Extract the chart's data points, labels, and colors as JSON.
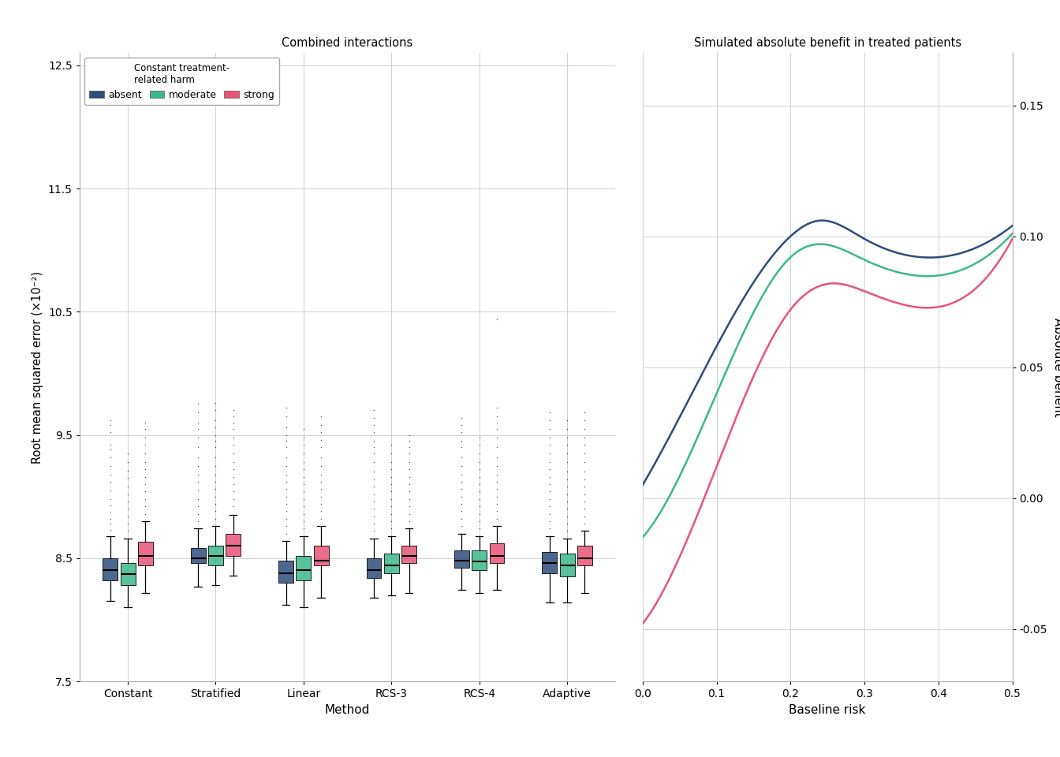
{
  "title_left": "Combined interactions",
  "title_right": "Simulated absolute benefit in treated patients",
  "ylabel_left": "Root mean squared error (×10⁻²)",
  "xlabel_left": "Method",
  "xlabel_right": "Baseline risk",
  "ylabel_right": "Absolute benefit",
  "methods": [
    "Constant",
    "Stratified",
    "Linear",
    "RCS-3",
    "RCS-4",
    "Adaptive"
  ],
  "harm_levels": [
    "absent",
    "moderate",
    "strong"
  ],
  "colors": {
    "absent": "#2E4D7B",
    "moderate": "#3DB88B",
    "strong": "#E8537A"
  },
  "legend_title": "Constant treatment-\nrelated harm",
  "ylim_left": [
    7.5,
    12.6
  ],
  "yticks_left": [
    7.5,
    8.5,
    9.5,
    10.5,
    11.5,
    12.5
  ],
  "box_data": {
    "Constant": {
      "absent": {
        "q1": 8.32,
        "median": 8.4,
        "q3": 8.5,
        "whislo": 8.15,
        "whishi": 8.68,
        "fliers_above": [
          8.73,
          8.78,
          8.82,
          8.87,
          8.93,
          8.98,
          9.05,
          9.12,
          9.18,
          9.25,
          9.32,
          9.38,
          9.42,
          9.52,
          9.58,
          9.62
        ]
      },
      "moderate": {
        "q1": 8.28,
        "median": 8.37,
        "q3": 8.46,
        "whislo": 8.1,
        "whishi": 8.66,
        "fliers_above": [
          8.72,
          8.78,
          8.84,
          8.9,
          8.96,
          9.02,
          9.08,
          9.15,
          9.21,
          9.28,
          9.35
        ]
      },
      "strong": {
        "q1": 8.44,
        "median": 8.52,
        "q3": 8.63,
        "whislo": 8.22,
        "whishi": 8.8,
        "fliers_above": [
          8.86,
          8.92,
          8.98,
          9.04,
          9.1,
          9.16,
          9.22,
          9.28,
          9.35,
          9.42,
          9.48,
          9.55,
          9.6
        ]
      }
    },
    "Stratified": {
      "absent": {
        "q1": 8.46,
        "median": 8.5,
        "q3": 8.58,
        "whislo": 8.27,
        "whishi": 8.74,
        "fliers_above": [
          8.8,
          8.86,
          8.92,
          8.98,
          9.05,
          9.12,
          9.18,
          9.25,
          9.32,
          9.4,
          9.48,
          9.55,
          9.6,
          9.68,
          9.75
        ]
      },
      "moderate": {
        "q1": 8.44,
        "median": 8.52,
        "q3": 8.6,
        "whislo": 8.28,
        "whishi": 8.76,
        "fliers_above": [
          8.82,
          8.88,
          8.94,
          9.0,
          9.06,
          9.12,
          9.18,
          9.25,
          9.32,
          9.4,
          9.45,
          9.5,
          9.56,
          9.62,
          9.7,
          9.76
        ]
      },
      "strong": {
        "q1": 8.52,
        "median": 8.6,
        "q3": 8.7,
        "whislo": 8.36,
        "whishi": 8.85,
        "fliers_above": [
          8.92,
          8.98,
          9.04,
          9.1,
          9.16,
          9.22,
          9.28,
          9.35,
          9.42,
          9.48,
          9.55,
          9.6,
          9.65,
          9.7
        ]
      }
    },
    "Linear": {
      "absent": {
        "q1": 8.3,
        "median": 8.38,
        "q3": 8.48,
        "whislo": 8.12,
        "whishi": 8.64,
        "fliers_above": [
          8.7,
          8.76,
          8.82,
          8.88,
          8.94,
          9.0,
          9.06,
          9.12,
          9.18,
          9.25,
          9.32,
          9.4,
          9.45,
          9.5,
          9.56,
          9.65,
          9.72
        ]
      },
      "moderate": {
        "q1": 8.32,
        "median": 8.4,
        "q3": 8.52,
        "whislo": 8.1,
        "whishi": 8.68,
        "fliers_above": [
          8.74,
          8.8,
          8.86,
          8.92,
          8.98,
          9.04,
          9.1,
          9.16,
          9.22,
          9.28,
          9.35,
          9.42,
          9.48,
          9.55
        ]
      },
      "strong": {
        "q1": 8.44,
        "median": 8.48,
        "q3": 8.6,
        "whislo": 8.18,
        "whishi": 8.76,
        "fliers_above": [
          8.82,
          8.88,
          8.94,
          9.0,
          9.06,
          9.12,
          9.18,
          9.25,
          9.32,
          9.4,
          9.46,
          9.52,
          9.58,
          9.65
        ]
      }
    },
    "RCS-3": {
      "absent": {
        "q1": 8.34,
        "median": 8.4,
        "q3": 8.5,
        "whislo": 8.18,
        "whishi": 8.66,
        "fliers_above": [
          8.72,
          8.78,
          8.84,
          8.9,
          8.96,
          9.02,
          9.08,
          9.14,
          9.2,
          9.28,
          9.35,
          9.4,
          9.45,
          9.52,
          9.58,
          9.64,
          9.7
        ]
      },
      "moderate": {
        "q1": 8.38,
        "median": 8.44,
        "q3": 8.54,
        "whislo": 8.2,
        "whishi": 8.68,
        "fliers_above": [
          8.74,
          8.8,
          8.86,
          8.92,
          8.98,
          9.04,
          9.1,
          9.16,
          9.22,
          9.28,
          9.35,
          9.42
        ]
      },
      "strong": {
        "q1": 8.46,
        "median": 8.52,
        "q3": 8.6,
        "whislo": 8.22,
        "whishi": 8.74,
        "fliers_above": [
          8.8,
          8.86,
          8.92,
          8.98,
          9.04,
          9.1,
          9.16,
          9.22,
          9.28,
          9.35,
          9.4,
          9.45,
          9.5
        ]
      }
    },
    "RCS-4": {
      "absent": {
        "q1": 8.42,
        "median": 8.48,
        "q3": 8.56,
        "whislo": 8.24,
        "whishi": 8.7,
        "fliers_above": [
          8.76,
          8.82,
          8.88,
          8.94,
          9.0,
          9.06,
          9.12,
          9.18,
          9.25,
          9.32,
          9.4,
          9.45,
          9.52,
          9.58,
          9.64
        ]
      },
      "moderate": {
        "q1": 8.4,
        "median": 8.47,
        "q3": 8.56,
        "whislo": 8.22,
        "whishi": 8.68,
        "fliers_above": [
          8.74,
          8.8,
          8.86,
          8.92,
          8.98,
          9.04,
          9.1,
          9.16,
          9.22,
          9.28,
          9.35,
          9.42,
          9.48
        ]
      },
      "strong": {
        "q1": 8.46,
        "median": 8.52,
        "q3": 8.62,
        "whislo": 8.24,
        "whishi": 8.76,
        "fliers_above": [
          8.82,
          8.88,
          8.94,
          9.0,
          9.06,
          9.12,
          9.18,
          9.25,
          9.32,
          9.4,
          9.48,
          9.55,
          9.6,
          9.65,
          9.72,
          10.44
        ]
      }
    },
    "Adaptive": {
      "absent": {
        "q1": 8.38,
        "median": 8.46,
        "q3": 8.55,
        "whislo": 8.14,
        "whishi": 8.68,
        "fliers_above": [
          8.74,
          8.8,
          8.86,
          8.92,
          8.98,
          9.04,
          9.1,
          9.16,
          9.22,
          9.28,
          9.35,
          9.42,
          9.48,
          9.55,
          9.62,
          9.68
        ]
      },
      "moderate": {
        "q1": 8.35,
        "median": 8.44,
        "q3": 8.54,
        "whislo": 8.14,
        "whishi": 8.66,
        "fliers_above": [
          8.72,
          8.78,
          8.84,
          8.9,
          8.96,
          9.02,
          9.08,
          9.14,
          9.2,
          9.28,
          9.35,
          9.42,
          9.48,
          9.55,
          9.62
        ]
      },
      "strong": {
        "q1": 8.44,
        "median": 8.5,
        "q3": 8.6,
        "whislo": 8.22,
        "whishi": 8.72,
        "fliers_above": [
          8.78,
          8.84,
          8.9,
          8.96,
          9.02,
          9.08,
          9.14,
          9.2,
          9.28,
          9.35,
          9.42,
          9.48,
          9.55,
          9.62,
          9.68
        ]
      }
    }
  },
  "line_knots_absent": [
    [
      0.0,
      0.005
    ],
    [
      0.1,
      0.058
    ],
    [
      0.2,
      0.1
    ],
    [
      0.24,
      0.106
    ],
    [
      0.3,
      0.099
    ],
    [
      0.4,
      0.092
    ],
    [
      0.5,
      0.104
    ]
  ],
  "line_knots_moderate": [
    [
      0.0,
      -0.015
    ],
    [
      0.1,
      0.04
    ],
    [
      0.2,
      0.092
    ],
    [
      0.24,
      0.097
    ],
    [
      0.3,
      0.091
    ],
    [
      0.4,
      0.085
    ],
    [
      0.5,
      0.101
    ]
  ],
  "line_knots_strong": [
    [
      0.0,
      -0.048
    ],
    [
      0.1,
      0.012
    ],
    [
      0.2,
      0.072
    ],
    [
      0.26,
      0.082
    ],
    [
      0.3,
      0.079
    ],
    [
      0.4,
      0.073
    ],
    [
      0.5,
      0.099
    ]
  ],
  "xlim_right": [
    0.0,
    0.5
  ],
  "ylim_right": [
    -0.07,
    0.17
  ],
  "yticks_right": [
    -0.05,
    0.0,
    0.05,
    0.1,
    0.15
  ],
  "background_color": "#FFFFFF",
  "grid_color": "#D0D0D0"
}
